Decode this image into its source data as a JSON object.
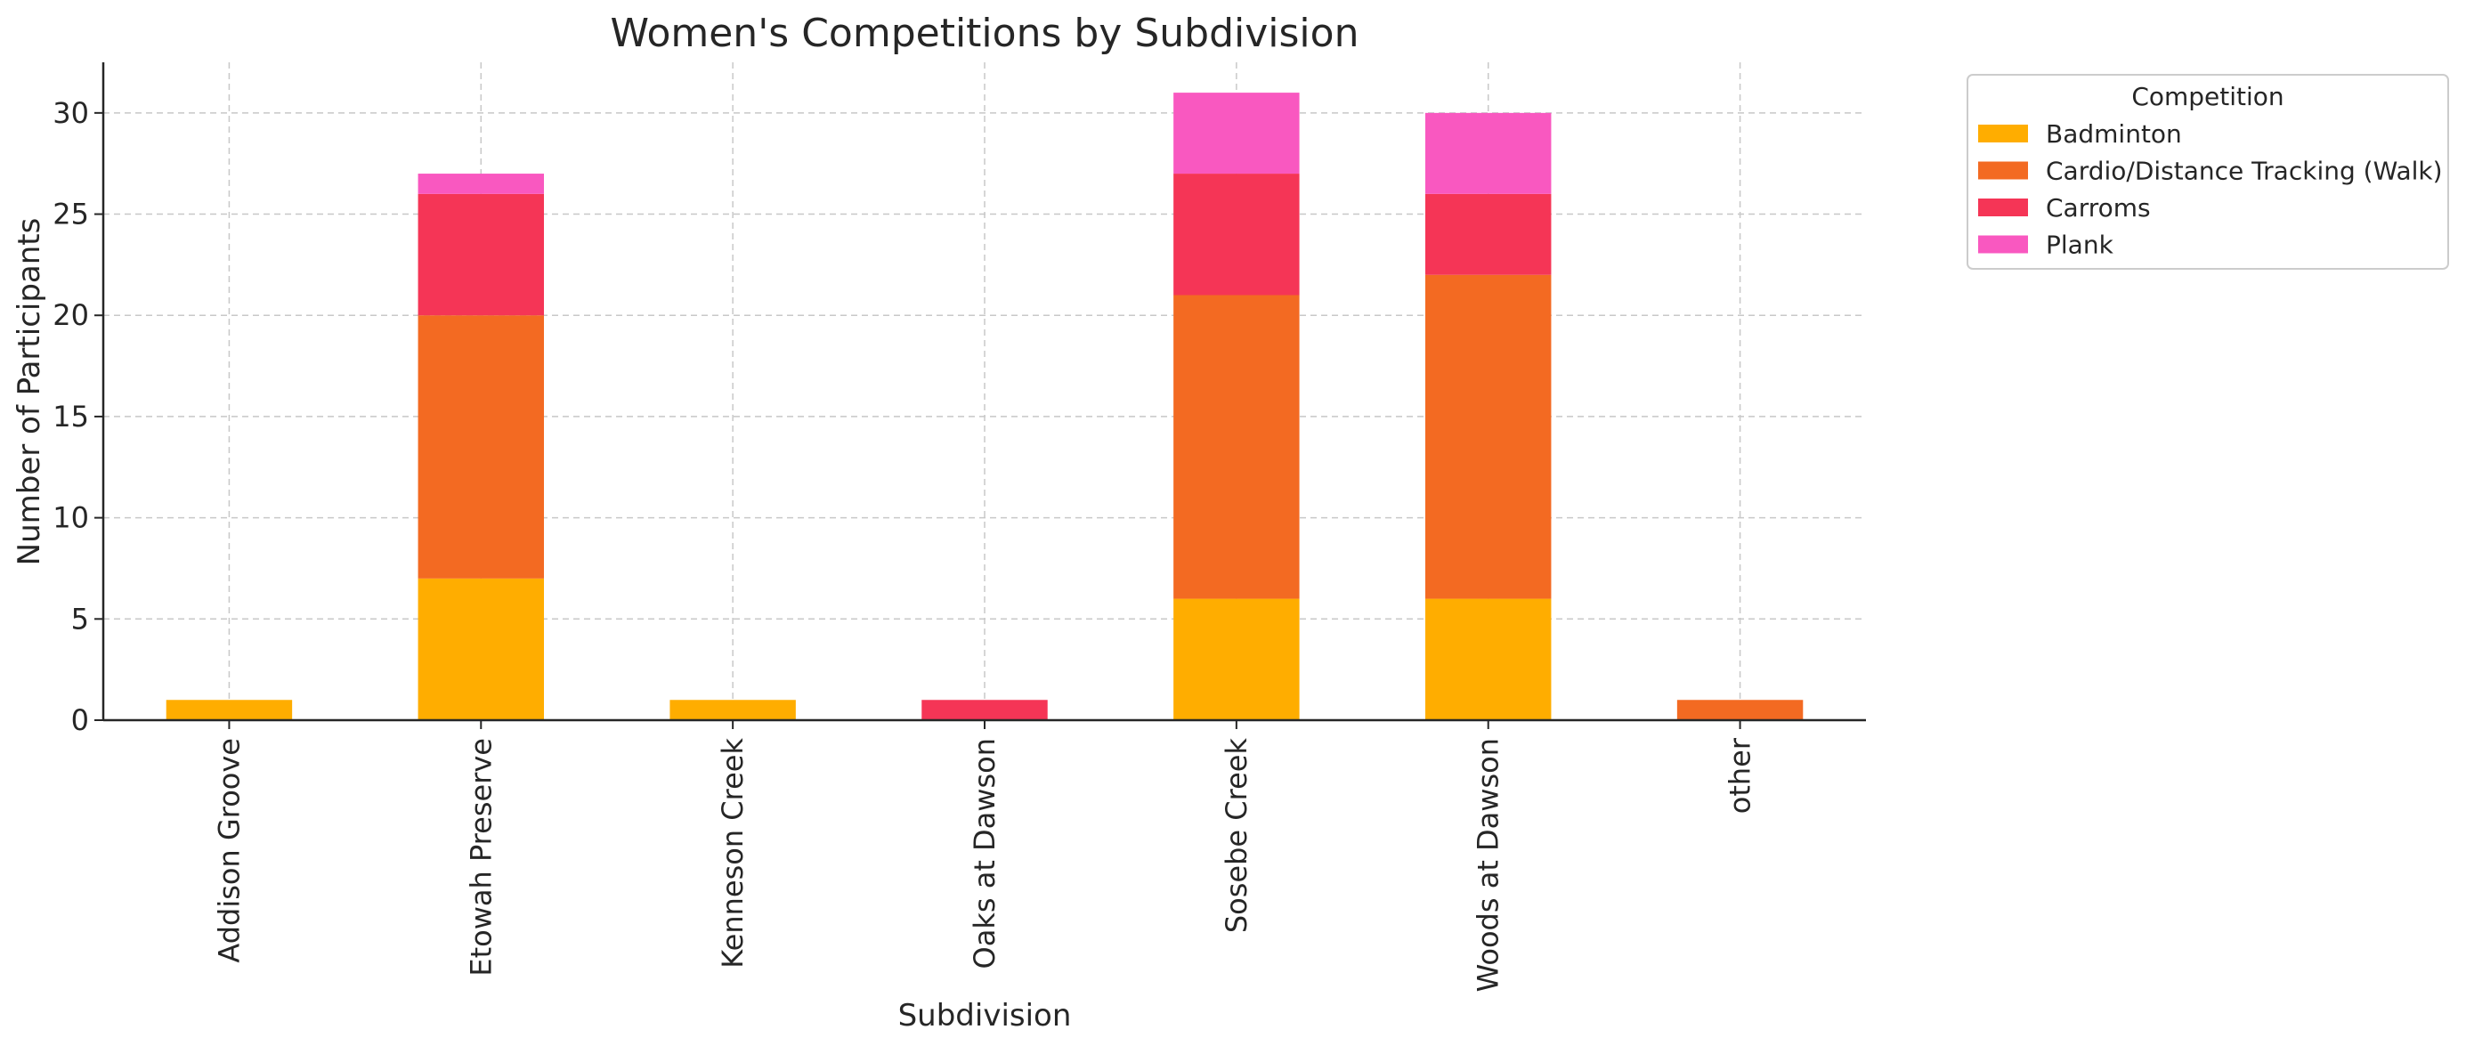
{
  "chart_data": {
    "type": "bar",
    "stacked": true,
    "title": "Women's Competitions by Subdivision",
    "xlabel": "Subdivision",
    "ylabel": "Number of Participants",
    "categories": [
      "Addison Groove",
      "Etowah Preserve",
      "Kenneson Creek",
      "Oaks at Dawson",
      "Sosebe Creek",
      "Woods at Dawson",
      "other"
    ],
    "series": [
      {
        "name": "Badminton",
        "color": "#FFAD00",
        "values": [
          1,
          7,
          1,
          0,
          6,
          6,
          0
        ]
      },
      {
        "name": "Cardio/Distance Tracking (Walk)",
        "color": "#F36A22",
        "values": [
          0,
          13,
          0,
          0,
          15,
          16,
          1
        ]
      },
      {
        "name": "Carroms",
        "color": "#F53556",
        "values": [
          0,
          6,
          0,
          1,
          6,
          4,
          0
        ]
      },
      {
        "name": "Plank",
        "color": "#F958C0",
        "values": [
          0,
          1,
          0,
          0,
          4,
          4,
          0
        ]
      }
    ],
    "ylim": [
      0,
      32.5
    ],
    "yticks": [
      0,
      5,
      10,
      15,
      20,
      25,
      30
    ],
    "grid": true,
    "legend": {
      "title": "Competition",
      "placement": "outside-top-right"
    }
  }
}
